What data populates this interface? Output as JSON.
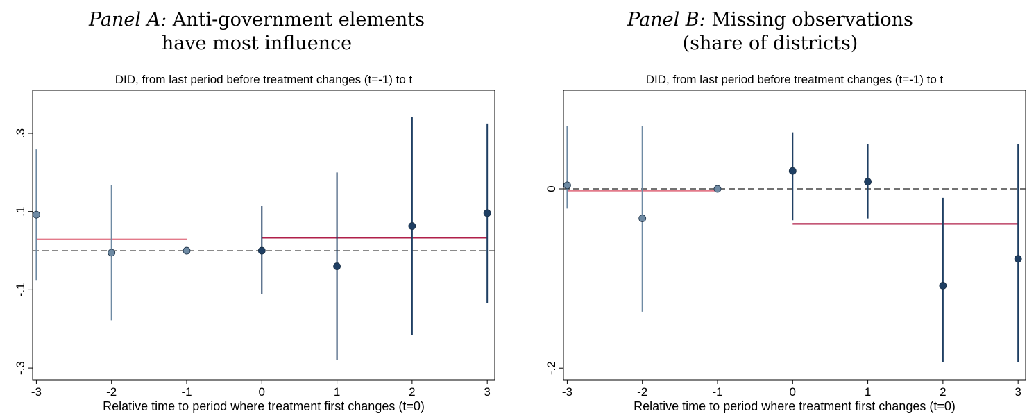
{
  "panels": [
    {
      "heading_prefix": "Panel A:",
      "heading_line1": "Anti-government elements",
      "heading_line2": "have most influence",
      "chart_data": {
        "type": "scatter",
        "title": "DID, from last period before treatment changes (t=-1) to t",
        "xlabel": "Relative time to period where treatment first changes (t=0)",
        "ylabel": "",
        "xlim": [
          -3.05,
          3.1
        ],
        "ylim": [
          -0.33,
          0.41
        ],
        "xticks": [
          -3,
          -2,
          -1,
          0,
          1,
          2,
          3
        ],
        "xtick_labels": [
          "-3",
          "-2",
          "-1",
          "0",
          "1",
          "2",
          "3"
        ],
        "yticks": [
          -0.3,
          -0.1,
          0.1,
          0.3
        ],
        "ytick_labels": [
          "-.3",
          "-.1",
          ".1",
          ".3"
        ],
        "reference_line_y": 0,
        "grid": false,
        "pre_color": "#6e8aa3",
        "post_color": "#1f3f63",
        "avg_pre_color": "#e37a8a",
        "avg_post_color": "#b0204a",
        "reference_color": "#444444",
        "points": [
          {
            "x": -3,
            "y": 0.092,
            "lo": -0.075,
            "hi": 0.259,
            "group": "pre"
          },
          {
            "x": -2,
            "y": -0.005,
            "lo": -0.178,
            "hi": 0.168,
            "group": "pre"
          },
          {
            "x": -1,
            "y": 0.0,
            "lo": null,
            "hi": null,
            "group": "pre"
          },
          {
            "x": 0,
            "y": 0.0,
            "lo": -0.11,
            "hi": 0.114,
            "group": "post"
          },
          {
            "x": 1,
            "y": -0.04,
            "lo": -0.28,
            "hi": 0.2,
            "group": "post"
          },
          {
            "x": 2,
            "y": 0.063,
            "lo": -0.215,
            "hi": 0.341,
            "group": "post"
          },
          {
            "x": 3,
            "y": 0.096,
            "lo": -0.134,
            "hi": 0.325,
            "group": "post"
          }
        ],
        "averages": [
          {
            "group": "pre",
            "x_from": -3,
            "x_to": -1,
            "y": 0.029
          },
          {
            "group": "post",
            "x_from": 0,
            "x_to": 3,
            "y": 0.033
          }
        ]
      }
    },
    {
      "heading_prefix": "Panel B:",
      "heading_line1": "Missing observations",
      "heading_line2": "(share of districts)",
      "chart_data": {
        "type": "scatter",
        "title": "DID, from last period before treatment changes (t=-1) to t",
        "xlabel": "Relative time to period where treatment first changes (t=0)",
        "ylabel": "",
        "xlim": [
          -3.05,
          3.1
        ],
        "ylim": [
          -0.213,
          0.11
        ],
        "xticks": [
          -3,
          -2,
          -1,
          0,
          1,
          2,
          3
        ],
        "xtick_labels": [
          "-3",
          "-2",
          "-1",
          "0",
          "1",
          "2",
          "3"
        ],
        "yticks": [
          -0.2,
          0
        ],
        "ytick_labels": [
          "-.2",
          "0"
        ],
        "reference_line_y": 0,
        "grid": false,
        "pre_color": "#6e8aa3",
        "post_color": "#1f3f63",
        "avg_pre_color": "#e37a8a",
        "avg_post_color": "#b0204a",
        "reference_color": "#444444",
        "points": [
          {
            "x": -3,
            "y": 0.004,
            "lo": -0.022,
            "hi": 0.07,
            "group": "pre"
          },
          {
            "x": -2,
            "y": -0.033,
            "lo": -0.137,
            "hi": 0.07,
            "group": "pre"
          },
          {
            "x": -1,
            "y": 0.0,
            "lo": null,
            "hi": null,
            "group": "pre"
          },
          {
            "x": 0,
            "y": 0.02,
            "lo": -0.035,
            "hi": 0.063,
            "group": "post"
          },
          {
            "x": 1,
            "y": 0.008,
            "lo": -0.033,
            "hi": 0.05,
            "group": "post"
          },
          {
            "x": 2,
            "y": -0.108,
            "lo": -0.193,
            "hi": -0.01,
            "group": "post"
          },
          {
            "x": 3,
            "y": -0.078,
            "lo": -0.193,
            "hi": 0.05,
            "group": "post"
          }
        ],
        "averages": [
          {
            "group": "pre",
            "x_from": -3,
            "x_to": -1,
            "y": -0.002
          },
          {
            "group": "post",
            "x_from": 0,
            "x_to": 3,
            "y": -0.039
          }
        ]
      }
    }
  ]
}
